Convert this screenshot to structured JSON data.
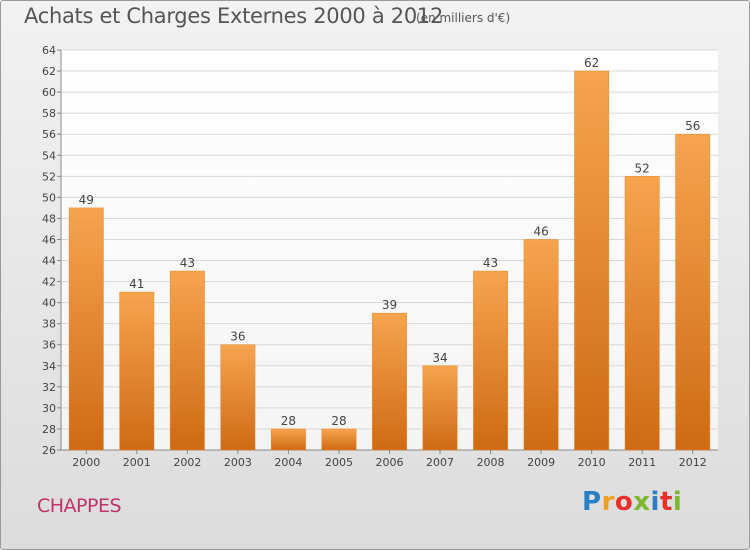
{
  "chart_data": {
    "type": "bar",
    "title": "Achats et Charges Externes 2000 à 2012",
    "unit_label": "(en milliers d'€)",
    "categories": [
      "2000",
      "2001",
      "2002",
      "2003",
      "2004",
      "2005",
      "2006",
      "2007",
      "2008",
      "2009",
      "2010",
      "2011",
      "2012"
    ],
    "values": [
      49,
      41,
      43,
      36,
      28,
      28,
      39,
      34,
      43,
      46,
      62,
      52,
      56
    ],
    "ylim": [
      26,
      64
    ],
    "yticks": [
      26,
      28,
      30,
      32,
      34,
      36,
      38,
      40,
      42,
      44,
      46,
      48,
      50,
      52,
      54,
      56,
      58,
      60,
      62,
      64
    ],
    "grid": true,
    "bar_color": "#f08c2c"
  },
  "commune": "CHAPPES",
  "brand": {
    "text": "Proxiti",
    "colors": [
      "#2a7fc4",
      "#f0a020",
      "#e8302a",
      "#7cb82f",
      "#2a7fc4",
      "#e8302a",
      "#7cb82f"
    ]
  }
}
